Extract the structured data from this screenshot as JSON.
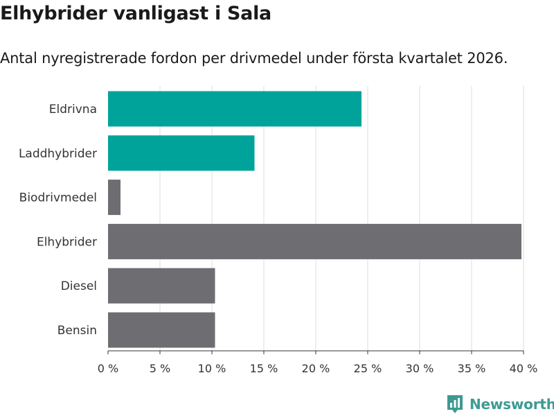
{
  "header": {
    "title": "Elhybrider vanligast i Sala",
    "subtitle": "Antal nyregistrerade fordon per drivmedel under första kvartalet 2026."
  },
  "brand": {
    "name": "Newsworthy"
  },
  "colors": {
    "highlight": "#00a39a",
    "default": "#6e6d72",
    "grid": "#dddddd",
    "axis": "#333333",
    "brand": "#3d9a92"
  },
  "chart_data": {
    "type": "bar",
    "orientation": "horizontal",
    "title": "Elhybrider vanligast i Sala",
    "subtitle": "Antal nyregistrerade fordon per drivmedel under första kvartalet 2026.",
    "xlabel": "",
    "ylabel": "",
    "xlim": [
      0,
      40
    ],
    "grid": true,
    "x_ticks": [
      0,
      5,
      10,
      15,
      20,
      25,
      30,
      35,
      40
    ],
    "x_tick_labels": [
      "0 %",
      "5 %",
      "10 %",
      "15 %",
      "20 %",
      "25 %",
      "30 %",
      "35 %",
      "40 %"
    ],
    "categories": [
      "Eldrivna",
      "Laddhybrider",
      "Biodrivmedel",
      "Elhybrider",
      "Diesel",
      "Bensin"
    ],
    "values": [
      24.4,
      14.1,
      1.2,
      39.8,
      10.3,
      10.3
    ],
    "highlight": [
      true,
      true,
      false,
      false,
      false,
      false
    ]
  }
}
